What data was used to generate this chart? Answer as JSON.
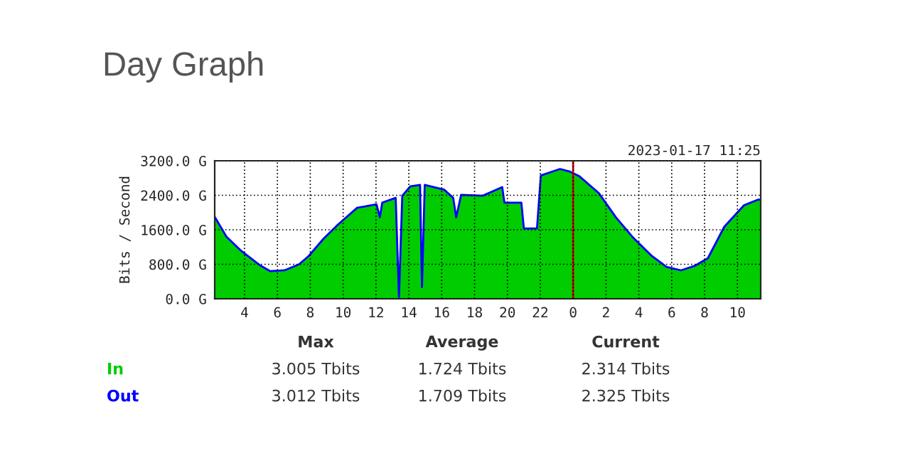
{
  "chart_data": {
    "type": "area",
    "title": "Day Graph",
    "ylabel": "Bits / Second",
    "x": [
      "2023-01-16T02:11",
      "2023-01-16T02:54",
      "2023-01-16T03:48",
      "2023-01-16T04:58",
      "2023-01-16T05:34",
      "2023-01-16T06:26",
      "2023-01-16T07:19",
      "2023-01-16T07:54",
      "2023-01-16T08:48",
      "2023-01-16T09:41",
      "2023-01-16T10:51",
      "2023-01-16T12:02",
      "2023-01-16T12:14",
      "2023-01-16T12:23",
      "2023-01-16T13:12",
      "2023-01-16T13:24",
      "2023-01-16T13:36",
      "2023-01-16T14:06",
      "2023-01-16T14:41",
      "2023-01-16T14:48",
      "2023-01-16T14:58",
      "2023-01-16T16:09",
      "2023-01-16T16:42",
      "2023-01-16T16:53",
      "2023-01-16T17:11",
      "2023-01-16T18:30",
      "2023-01-16T19:41",
      "2023-01-16T19:49",
      "2023-01-16T20:51",
      "2023-01-16T21:00",
      "2023-01-16T21:48",
      "2023-01-16T22:02",
      "2023-01-16T23:12",
      "2023-01-16T23:48",
      "2023-01-17T00:23",
      "2023-01-17T01:34",
      "2023-01-17T02:36",
      "2023-01-17T03:36",
      "2023-01-17T04:48",
      "2023-01-17T05:41",
      "2023-01-17T06:34",
      "2023-01-17T07:26",
      "2023-01-17T08:12",
      "2023-01-17T09:12",
      "2023-01-17T10:24",
      "2023-01-17T11:16",
      "2023-01-17T11:24"
    ],
    "series": [
      {
        "name": "In",
        "color": "#00cc00",
        "values": [
          1880,
          1430,
          1100,
          760,
          630,
          650,
          790,
          980,
          1380,
          1710,
          2100,
          2180,
          1880,
          2220,
          2330,
          30,
          2380,
          2600,
          2630,
          260,
          2630,
          2520,
          2330,
          1880,
          2400,
          2380,
          2580,
          2220,
          2220,
          1620,
          1620,
          2850,
          3000,
          2940,
          2830,
          2440,
          1880,
          1430,
          980,
          730,
          650,
          760,
          930,
          1660,
          2160,
          2290,
          2290
        ]
      },
      {
        "name": "Out",
        "type": "line",
        "color": "#0000ff",
        "values": [
          1900,
          1440,
          1110,
          770,
          640,
          660,
          800,
          990,
          1390,
          1720,
          2110,
          2190,
          1890,
          2230,
          2340,
          40,
          2390,
          2610,
          2640,
          270,
          2640,
          2530,
          2340,
          1890,
          2410,
          2390,
          2590,
          2230,
          2230,
          1630,
          1630,
          2860,
          3010,
          2950,
          2840,
          2450,
          1890,
          1440,
          990,
          740,
          660,
          770,
          940,
          1670,
          2170,
          2300,
          2300
        ]
      }
    ],
    "xlim": [
      "2023-01-16T02:11",
      "2023-01-17T11:25"
    ],
    "ylim": [
      0,
      3200
    ],
    "xticks": [
      {
        "value": "2023-01-16T04:00",
        "label": "4"
      },
      {
        "value": "2023-01-16T06:00",
        "label": "6"
      },
      {
        "value": "2023-01-16T08:00",
        "label": "8"
      },
      {
        "value": "2023-01-16T10:00",
        "label": "10"
      },
      {
        "value": "2023-01-16T12:00",
        "label": "12"
      },
      {
        "value": "2023-01-16T14:00",
        "label": "14"
      },
      {
        "value": "2023-01-16T16:00",
        "label": "16"
      },
      {
        "value": "2023-01-16T18:00",
        "label": "18"
      },
      {
        "value": "2023-01-16T20:00",
        "label": "20"
      },
      {
        "value": "2023-01-16T22:00",
        "label": "22"
      },
      {
        "value": "2023-01-17T00:00",
        "label": "0"
      },
      {
        "value": "2023-01-17T02:00",
        "label": "2"
      },
      {
        "value": "2023-01-17T04:00",
        "label": "4"
      },
      {
        "value": "2023-01-17T06:00",
        "label": "6"
      },
      {
        "value": "2023-01-17T08:00",
        "label": "8"
      },
      {
        "value": "2023-01-17T10:00",
        "label": "10"
      }
    ],
    "yticks": [
      {
        "value": 0,
        "label": "0.0 G"
      },
      {
        "value": 800,
        "label": "800.0 G"
      },
      {
        "value": 1600,
        "label": "1600.0 G"
      },
      {
        "value": 2400,
        "label": "2400.0 G"
      },
      {
        "value": 3200,
        "label": "3200.0 G"
      }
    ],
    "grid": true,
    "ref_lines": [
      {
        "axis": "x",
        "value": "2023-01-17T00:00",
        "color": "#cc0000"
      }
    ],
    "annotations": [
      "2023-01-17 11:25",
      "Max",
      "Average",
      "Current",
      "3.005 Tbits",
      "1.724 Tbits",
      "2.314 Tbits",
      "3.012 Tbits",
      "1.709 Tbits",
      "2.325 Tbits"
    ]
  }
}
